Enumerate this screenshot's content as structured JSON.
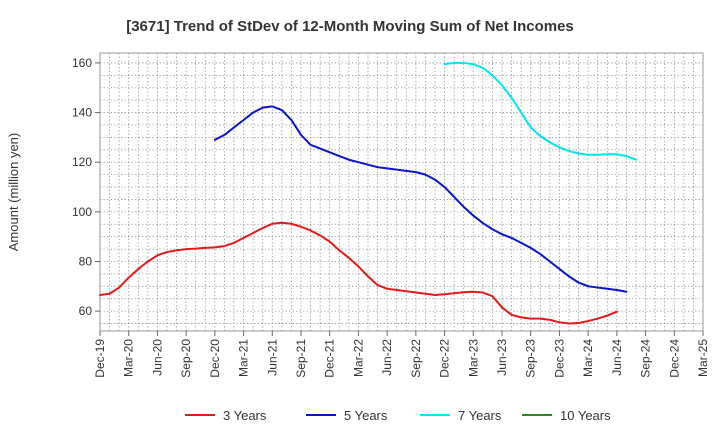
{
  "chart_data": {
    "type": "line",
    "title": "[3671]  Trend of StDev of 12-Month Moving Sum of Net Incomes",
    "ylabel": "Amount (million yen)",
    "xlabel": "",
    "ylim": [
      52,
      164
    ],
    "yticks": [
      60,
      80,
      100,
      120,
      140,
      160
    ],
    "x_tick_labels": [
      "Dec-19",
      "Mar-20",
      "Jun-20",
      "Sep-20",
      "Dec-20",
      "Mar-21",
      "Jun-21",
      "Sep-21",
      "Dec-21",
      "Mar-22",
      "Jun-22",
      "Sep-22",
      "Dec-22",
      "Mar-23",
      "Jun-23",
      "Sep-23",
      "Dec-23",
      "Mar-24",
      "Jun-24",
      "Sep-24",
      "Dec-24",
      "Mar-25"
    ],
    "x_range": [
      0,
      63
    ],
    "grid": true,
    "legend_position": "bottom",
    "series": [
      {
        "name": "3 Years",
        "color": "#e31a1c",
        "start_month_index": 0,
        "values": [
          66.5,
          67,
          69.5,
          73.5,
          77,
          80,
          82.5,
          83.8,
          84.5,
          85,
          85.2,
          85.5,
          85.7,
          86.2,
          87.5,
          89.5,
          91.5,
          93.5,
          95.2,
          95.6,
          95.2,
          94,
          92.5,
          90.5,
          88,
          84.5,
          81.5,
          78,
          74,
          70.5,
          69,
          68.5,
          68,
          67.5,
          67,
          66.5,
          66.8,
          67.2,
          67.6,
          67.8,
          67.5,
          66,
          61.5,
          58.5,
          57.5,
          57,
          57,
          56.5,
          55.5,
          55,
          55.2,
          56,
          57,
          58.2,
          59.8
        ]
      },
      {
        "name": "5 Years",
        "color": "#0a14c8",
        "start_month_index": 12,
        "values": [
          129,
          131,
          134,
          137,
          140,
          142,
          142.5,
          141,
          137,
          131,
          127,
          125.5,
          124,
          122.5,
          121,
          120,
          119,
          118,
          117.5,
          117,
          116.5,
          116,
          115,
          113,
          110,
          106,
          102,
          98.5,
          95.5,
          93,
          91,
          89.5,
          87.5,
          85.5,
          83,
          80,
          77,
          74,
          71.5,
          70,
          69.5,
          69,
          68.5,
          67.8
        ]
      },
      {
        "name": "7 Years",
        "color": "#00e5ee",
        "start_month_index": 36,
        "values": [
          159.5,
          160,
          160,
          159.5,
          158,
          155,
          151,
          146,
          140,
          134,
          130.5,
          128,
          126,
          124.5,
          123.5,
          123,
          123,
          123.2,
          123.2,
          122.5,
          121
        ]
      },
      {
        "name": "10 Years",
        "color": "#228b22",
        "start_month_index": 0,
        "values": []
      }
    ]
  }
}
